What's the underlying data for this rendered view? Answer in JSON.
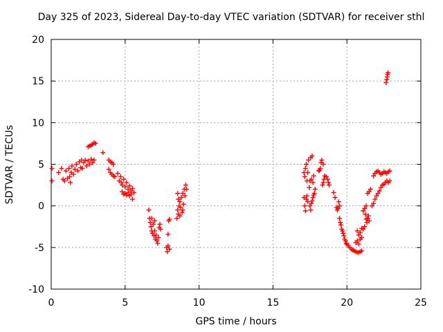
{
  "chart_data": {
    "type": "scatter",
    "title": "Day 325 of 2023, Sidereal Day-to-day VTEC variation (SDTVAR) for receiver sthl",
    "xlabel": "GPS time / hours",
    "ylabel": "SDTVAR / TECUs",
    "xlim": [
      0,
      25
    ],
    "ylim": [
      -10,
      20
    ],
    "xticks": [
      0,
      5,
      10,
      15,
      20,
      25
    ],
    "yticks": [
      -10,
      -5,
      0,
      5,
      10,
      15,
      20
    ],
    "grid": true,
    "marker": "+",
    "marker_color": "#ff0000",
    "series": [
      {
        "name": "sthl",
        "points": [
          [
            0.05,
            4.5
          ],
          [
            0.05,
            3.0
          ],
          [
            0.5,
            4.0
          ],
          [
            0.7,
            4.5
          ],
          [
            0.8,
            3.2
          ],
          [
            0.9,
            3.0
          ],
          [
            1.0,
            4.2
          ],
          [
            1.1,
            3.3
          ],
          [
            1.2,
            4.5
          ],
          [
            1.25,
            3.5
          ],
          [
            1.3,
            2.8
          ],
          [
            1.35,
            4.0
          ],
          [
            1.4,
            4.8
          ],
          [
            1.5,
            3.8
          ],
          [
            1.6,
            4.4
          ],
          [
            1.7,
            5.0
          ],
          [
            1.8,
            4.2
          ],
          [
            1.9,
            5.3
          ],
          [
            2.0,
            4.6
          ],
          [
            2.05,
            5.5
          ],
          [
            2.1,
            4.5
          ],
          [
            2.2,
            5.2
          ],
          [
            2.3,
            5.5
          ],
          [
            2.4,
            4.8
          ],
          [
            2.5,
            5.4
          ],
          [
            2.6,
            5.0
          ],
          [
            2.7,
            5.6
          ],
          [
            2.8,
            5.2
          ],
          [
            2.9,
            5.5
          ],
          [
            2.5,
            7.1
          ],
          [
            2.6,
            7.2
          ],
          [
            2.7,
            7.3
          ],
          [
            2.8,
            7.4
          ],
          [
            2.9,
            7.6
          ],
          [
            3.0,
            7.5
          ],
          [
            3.5,
            6.4
          ],
          [
            3.9,
            5.5
          ],
          [
            4.0,
            5.3
          ],
          [
            4.1,
            5.2
          ],
          [
            4.2,
            5.0
          ],
          [
            3.9,
            4.4
          ],
          [
            4.0,
            4.0
          ],
          [
            4.1,
            3.8
          ],
          [
            4.2,
            3.6
          ],
          [
            4.3,
            3.5
          ],
          [
            4.5,
            3.9
          ],
          [
            4.6,
            3.0
          ],
          [
            4.7,
            3.5
          ],
          [
            4.75,
            2.8
          ],
          [
            4.8,
            2.5
          ],
          [
            4.9,
            3.2
          ],
          [
            5.0,
            2.3
          ],
          [
            5.1,
            2.8
          ],
          [
            5.2,
            2.0
          ],
          [
            5.3,
            2.4
          ],
          [
            5.4,
            1.8
          ],
          [
            5.5,
            2.1
          ],
          [
            5.6,
            1.6
          ],
          [
            4.8,
            1.7
          ],
          [
            4.9,
            1.4
          ],
          [
            5.0,
            1.5
          ],
          [
            5.1,
            1.3
          ],
          [
            5.2,
            1.6
          ],
          [
            5.3,
            1.2
          ],
          [
            5.4,
            1.4
          ],
          [
            5.5,
            0.8
          ],
          [
            6.6,
            -0.5
          ],
          [
            6.65,
            -1.5
          ],
          [
            6.7,
            -2.0
          ],
          [
            6.75,
            -2.5
          ],
          [
            6.8,
            -3.0
          ],
          [
            6.85,
            -3.3
          ],
          [
            6.9,
            -2.2
          ],
          [
            6.95,
            -3.6
          ],
          [
            7.0,
            -3.0
          ],
          [
            7.05,
            -4.0
          ],
          [
            7.1,
            -3.5
          ],
          [
            7.15,
            -4.2
          ],
          [
            7.2,
            -4.5
          ],
          [
            7.25,
            -3.8
          ],
          [
            7.3,
            -2.6
          ],
          [
            7.35,
            -2.2
          ],
          [
            7.4,
            -2.8
          ],
          [
            7.0,
            -1.8
          ],
          [
            6.8,
            -1.5
          ],
          [
            7.8,
            -5.0
          ],
          [
            7.85,
            -5.5
          ],
          [
            7.9,
            -4.8
          ],
          [
            7.9,
            -3.4
          ],
          [
            7.95,
            -1.8
          ],
          [
            8.0,
            -1.6
          ],
          [
            8.0,
            -5.2
          ],
          [
            8.5,
            -1.5
          ],
          [
            8.55,
            -0.5
          ],
          [
            8.6,
            -1.0
          ],
          [
            8.65,
            0.0
          ],
          [
            8.7,
            0.5
          ],
          [
            8.75,
            -0.2
          ],
          [
            8.8,
            1.0
          ],
          [
            8.85,
            -0.8
          ],
          [
            8.9,
            1.5
          ],
          [
            8.95,
            0.2
          ],
          [
            9.0,
            2.0
          ],
          [
            9.05,
            1.2
          ],
          [
            9.1,
            2.5
          ],
          [
            9.15,
            2.0
          ],
          [
            8.55,
            1.5
          ],
          [
            8.6,
            0.8
          ],
          [
            8.7,
            -1.2
          ],
          [
            8.9,
            -0.5
          ],
          [
            17.1,
            4.0
          ],
          [
            17.15,
            3.5
          ],
          [
            17.2,
            4.5
          ],
          [
            17.25,
            5.0
          ],
          [
            17.3,
            3.0
          ],
          [
            17.35,
            4.0
          ],
          [
            17.4,
            5.5
          ],
          [
            17.45,
            2.2
          ],
          [
            17.5,
            3.0
          ],
          [
            17.55,
            5.8
          ],
          [
            17.6,
            3.2
          ],
          [
            17.65,
            6.0
          ],
          [
            17.7,
            2.8
          ],
          [
            17.75,
            3.6
          ],
          [
            17.1,
            1.0
          ],
          [
            17.15,
            0.0
          ],
          [
            17.2,
            -0.6
          ],
          [
            17.25,
            0.8
          ],
          [
            17.3,
            1.2
          ],
          [
            17.35,
            0.5
          ],
          [
            17.5,
            0.0
          ],
          [
            17.55,
            -0.5
          ],
          [
            17.6,
            0.3
          ],
          [
            17.65,
            0.6
          ],
          [
            17.7,
            1.0
          ],
          [
            17.75,
            1.3
          ],
          [
            17.8,
            1.5
          ],
          [
            17.85,
            2.0
          ],
          [
            18.1,
            4.2
          ],
          [
            18.15,
            4.3
          ],
          [
            18.2,
            4.5
          ],
          [
            18.25,
            5.2
          ],
          [
            18.3,
            5.5
          ],
          [
            18.4,
            5.0
          ],
          [
            18.35,
            2.5
          ],
          [
            18.4,
            2.8
          ],
          [
            18.45,
            3.2
          ],
          [
            18.5,
            3.6
          ],
          [
            18.6,
            3.5
          ],
          [
            18.7,
            3.2
          ],
          [
            18.75,
            2.8
          ],
          [
            18.8,
            2.5
          ],
          [
            19.1,
            1.6
          ],
          [
            19.2,
            1.0
          ],
          [
            19.3,
            -0.2
          ],
          [
            19.35,
            -0.5
          ],
          [
            19.4,
            -0.3
          ],
          [
            19.45,
            0.5
          ],
          [
            19.5,
            0.0
          ],
          [
            19.5,
            -1.5
          ],
          [
            19.55,
            -2.0
          ],
          [
            19.6,
            -2.3
          ],
          [
            19.65,
            -2.8
          ],
          [
            19.7,
            -3.0
          ],
          [
            19.75,
            -3.3
          ],
          [
            19.8,
            -3.6
          ],
          [
            19.85,
            -4.0
          ],
          [
            19.9,
            -4.2
          ],
          [
            19.95,
            -4.5
          ],
          [
            20.0,
            -4.6
          ],
          [
            20.1,
            -4.8
          ],
          [
            20.2,
            -5.0
          ],
          [
            20.3,
            -5.2
          ],
          [
            20.4,
            -5.3
          ],
          [
            20.5,
            -5.4
          ],
          [
            20.6,
            -5.5
          ],
          [
            20.7,
            -5.6
          ],
          [
            20.8,
            -5.6
          ],
          [
            20.9,
            -5.5
          ],
          [
            21.0,
            -5.4
          ],
          [
            20.6,
            -4.4
          ],
          [
            20.7,
            -4.2
          ],
          [
            20.8,
            -4.6
          ],
          [
            20.9,
            -4.0
          ],
          [
            21.0,
            -3.8
          ],
          [
            20.7,
            -3.0
          ],
          [
            20.8,
            -3.5
          ],
          [
            20.9,
            -3.2
          ],
          [
            21.0,
            -2.7
          ],
          [
            21.1,
            -2.8
          ],
          [
            21.2,
            -2.5
          ],
          [
            21.25,
            -1.0
          ],
          [
            21.3,
            -1.6
          ],
          [
            21.35,
            -2.0
          ],
          [
            21.4,
            -1.5
          ],
          [
            21.45,
            -1.2
          ],
          [
            21.5,
            -1.8
          ],
          [
            21.1,
            -0.6
          ],
          [
            21.2,
            -0.3
          ],
          [
            21.3,
            0.0
          ],
          [
            21.4,
            1.5
          ],
          [
            21.5,
            1.7
          ],
          [
            21.6,
            2.0
          ],
          [
            21.7,
            0.0
          ],
          [
            21.8,
            0.3
          ],
          [
            21.9,
            0.8
          ],
          [
            22.0,
            1.2
          ],
          [
            22.1,
            1.5
          ],
          [
            22.2,
            1.8
          ],
          [
            22.3,
            2.2
          ],
          [
            22.4,
            2.5
          ],
          [
            22.5,
            2.6
          ],
          [
            22.6,
            2.8
          ],
          [
            22.7,
            3.0
          ],
          [
            22.8,
            2.8
          ],
          [
            22.9,
            3.0
          ],
          [
            21.8,
            3.6
          ],
          [
            21.9,
            3.9
          ],
          [
            22.0,
            4.1
          ],
          [
            22.1,
            4.2
          ],
          [
            22.2,
            4.0
          ],
          [
            22.3,
            3.8
          ],
          [
            22.4,
            3.9
          ],
          [
            22.5,
            4.1
          ],
          [
            22.6,
            4.0
          ],
          [
            22.7,
            3.9
          ],
          [
            22.8,
            4.1
          ],
          [
            22.9,
            4.2
          ],
          [
            22.65,
            14.8
          ],
          [
            22.7,
            15.2
          ],
          [
            22.72,
            15.5
          ],
          [
            22.75,
            15.8
          ],
          [
            22.78,
            16.0
          ]
        ]
      }
    ]
  }
}
